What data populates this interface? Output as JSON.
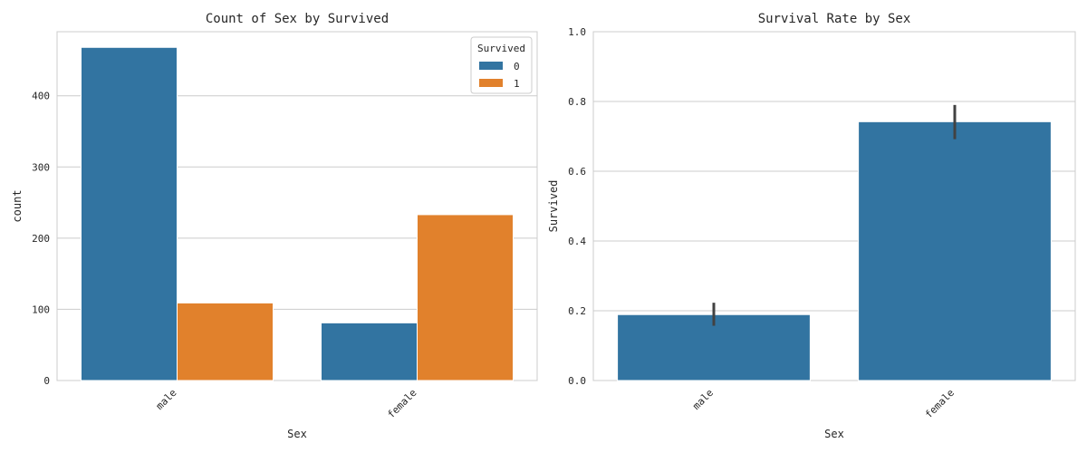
{
  "chart_data": [
    {
      "type": "bar",
      "title": "Count of Sex by Survived",
      "xlabel": "Sex",
      "ylabel": "count",
      "categories": [
        "male",
        "female"
      ],
      "ylim": [
        0,
        490
      ],
      "yticks": [
        0,
        100,
        200,
        300,
        400
      ],
      "grid": true,
      "legend": {
        "title": "Survived",
        "placement": "top-right"
      },
      "series": [
        {
          "name": "0",
          "values": [
            468,
            81
          ],
          "color": "#3274a1"
        },
        {
          "name": "1",
          "values": [
            109,
            233
          ],
          "color": "#e1812c"
        }
      ]
    },
    {
      "type": "bar",
      "title": "Survival Rate by Sex",
      "xlabel": "Sex",
      "ylabel": "Survived",
      "categories": [
        "male",
        "female"
      ],
      "ylim": [
        0,
        1.0
      ],
      "yticks": [
        0.0,
        0.2,
        0.4,
        0.6,
        0.8,
        1.0
      ],
      "grid": true,
      "series": [
        {
          "values": [
            0.189,
            0.742
          ],
          "color": "#3274a1",
          "error": [
            [
              0.157,
              0.223
            ],
            [
              0.692,
              0.79
            ]
          ]
        }
      ]
    }
  ]
}
